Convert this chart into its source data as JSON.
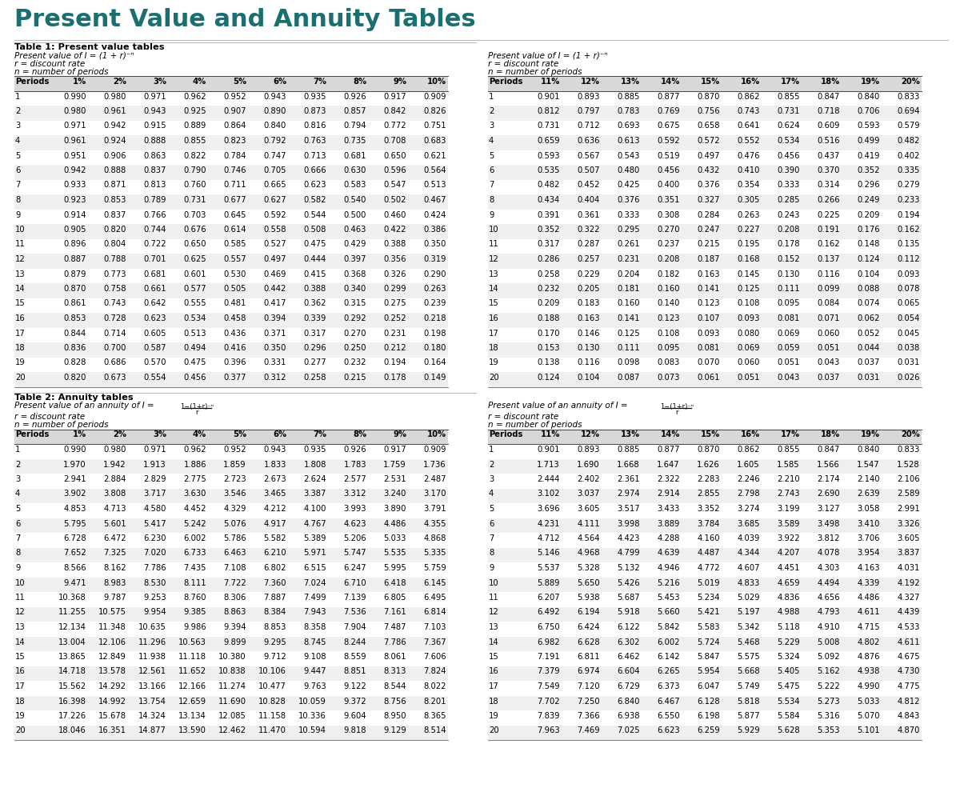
{
  "title": "Present Value and Annuity Tables",
  "title_color": "#1a7070",
  "title_fontsize": 22,
  "title_fontweight": "bold",
  "background_color": "#ffffff",
  "table1_title": "Table 1: Present value tables",
  "table1_left_headers": [
    "Periods",
    "1%",
    "2%",
    "3%",
    "4%",
    "5%",
    "6%",
    "7%",
    "8%",
    "9%",
    "10%"
  ],
  "table1_right_headers": [
    "Periods",
    "11%",
    "12%",
    "13%",
    "14%",
    "15%",
    "16%",
    "17%",
    "18%",
    "19%",
    "20%"
  ],
  "pv_left": [
    [
      1,
      0.99,
      0.98,
      0.971,
      0.962,
      0.952,
      0.943,
      0.935,
      0.926,
      0.917,
      0.909
    ],
    [
      2,
      0.98,
      0.961,
      0.943,
      0.925,
      0.907,
      0.89,
      0.873,
      0.857,
      0.842,
      0.826
    ],
    [
      3,
      0.971,
      0.942,
      0.915,
      0.889,
      0.864,
      0.84,
      0.816,
      0.794,
      0.772,
      0.751
    ],
    [
      4,
      0.961,
      0.924,
      0.888,
      0.855,
      0.823,
      0.792,
      0.763,
      0.735,
      0.708,
      0.683
    ],
    [
      5,
      0.951,
      0.906,
      0.863,
      0.822,
      0.784,
      0.747,
      0.713,
      0.681,
      0.65,
      0.621
    ],
    [
      6,
      0.942,
      0.888,
      0.837,
      0.79,
      0.746,
      0.705,
      0.666,
      0.63,
      0.596,
      0.564
    ],
    [
      7,
      0.933,
      0.871,
      0.813,
      0.76,
      0.711,
      0.665,
      0.623,
      0.583,
      0.547,
      0.513
    ],
    [
      8,
      0.923,
      0.853,
      0.789,
      0.731,
      0.677,
      0.627,
      0.582,
      0.54,
      0.502,
      0.467
    ],
    [
      9,
      0.914,
      0.837,
      0.766,
      0.703,
      0.645,
      0.592,
      0.544,
      0.5,
      0.46,
      0.424
    ],
    [
      10,
      0.905,
      0.82,
      0.744,
      0.676,
      0.614,
      0.558,
      0.508,
      0.463,
      0.422,
      0.386
    ],
    [
      11,
      0.896,
      0.804,
      0.722,
      0.65,
      0.585,
      0.527,
      0.475,
      0.429,
      0.388,
      0.35
    ],
    [
      12,
      0.887,
      0.788,
      0.701,
      0.625,
      0.557,
      0.497,
      0.444,
      0.397,
      0.356,
      0.319
    ],
    [
      13,
      0.879,
      0.773,
      0.681,
      0.601,
      0.53,
      0.469,
      0.415,
      0.368,
      0.326,
      0.29
    ],
    [
      14,
      0.87,
      0.758,
      0.661,
      0.577,
      0.505,
      0.442,
      0.388,
      0.34,
      0.299,
      0.263
    ],
    [
      15,
      0.861,
      0.743,
      0.642,
      0.555,
      0.481,
      0.417,
      0.362,
      0.315,
      0.275,
      0.239
    ],
    [
      16,
      0.853,
      0.728,
      0.623,
      0.534,
      0.458,
      0.394,
      0.339,
      0.292,
      0.252,
      0.218
    ],
    [
      17,
      0.844,
      0.714,
      0.605,
      0.513,
      0.436,
      0.371,
      0.317,
      0.27,
      0.231,
      0.198
    ],
    [
      18,
      0.836,
      0.7,
      0.587,
      0.494,
      0.416,
      0.35,
      0.296,
      0.25,
      0.212,
      0.18
    ],
    [
      19,
      0.828,
      0.686,
      0.57,
      0.475,
      0.396,
      0.331,
      0.277,
      0.232,
      0.194,
      0.164
    ],
    [
      20,
      0.82,
      0.673,
      0.554,
      0.456,
      0.377,
      0.312,
      0.258,
      0.215,
      0.178,
      0.149
    ]
  ],
  "pv_right": [
    [
      1,
      0.901,
      0.893,
      0.885,
      0.877,
      0.87,
      0.862,
      0.855,
      0.847,
      0.84,
      0.833
    ],
    [
      2,
      0.812,
      0.797,
      0.783,
      0.769,
      0.756,
      0.743,
      0.731,
      0.718,
      0.706,
      0.694
    ],
    [
      3,
      0.731,
      0.712,
      0.693,
      0.675,
      0.658,
      0.641,
      0.624,
      0.609,
      0.593,
      0.579
    ],
    [
      4,
      0.659,
      0.636,
      0.613,
      0.592,
      0.572,
      0.552,
      0.534,
      0.516,
      0.499,
      0.482
    ],
    [
      5,
      0.593,
      0.567,
      0.543,
      0.519,
      0.497,
      0.476,
      0.456,
      0.437,
      0.419,
      0.402
    ],
    [
      6,
      0.535,
      0.507,
      0.48,
      0.456,
      0.432,
      0.41,
      0.39,
      0.37,
      0.352,
      0.335
    ],
    [
      7,
      0.482,
      0.452,
      0.425,
      0.4,
      0.376,
      0.354,
      0.333,
      0.314,
      0.296,
      0.279
    ],
    [
      8,
      0.434,
      0.404,
      0.376,
      0.351,
      0.327,
      0.305,
      0.285,
      0.266,
      0.249,
      0.233
    ],
    [
      9,
      0.391,
      0.361,
      0.333,
      0.308,
      0.284,
      0.263,
      0.243,
      0.225,
      0.209,
      0.194
    ],
    [
      10,
      0.352,
      0.322,
      0.295,
      0.27,
      0.247,
      0.227,
      0.208,
      0.191,
      0.176,
      0.162
    ],
    [
      11,
      0.317,
      0.287,
      0.261,
      0.237,
      0.215,
      0.195,
      0.178,
      0.162,
      0.148,
      0.135
    ],
    [
      12,
      0.286,
      0.257,
      0.231,
      0.208,
      0.187,
      0.168,
      0.152,
      0.137,
      0.124,
      0.112
    ],
    [
      13,
      0.258,
      0.229,
      0.204,
      0.182,
      0.163,
      0.145,
      0.13,
      0.116,
      0.104,
      0.093
    ],
    [
      14,
      0.232,
      0.205,
      0.181,
      0.16,
      0.141,
      0.125,
      0.111,
      0.099,
      0.088,
      0.078
    ],
    [
      15,
      0.209,
      0.183,
      0.16,
      0.14,
      0.123,
      0.108,
      0.095,
      0.084,
      0.074,
      0.065
    ],
    [
      16,
      0.188,
      0.163,
      0.141,
      0.123,
      0.107,
      0.093,
      0.081,
      0.071,
      0.062,
      0.054
    ],
    [
      17,
      0.17,
      0.146,
      0.125,
      0.108,
      0.093,
      0.08,
      0.069,
      0.06,
      0.052,
      0.045
    ],
    [
      18,
      0.153,
      0.13,
      0.111,
      0.095,
      0.081,
      0.069,
      0.059,
      0.051,
      0.044,
      0.038
    ],
    [
      19,
      0.138,
      0.116,
      0.098,
      0.083,
      0.07,
      0.06,
      0.051,
      0.043,
      0.037,
      0.031
    ],
    [
      20,
      0.124,
      0.104,
      0.087,
      0.073,
      0.061,
      0.051,
      0.043,
      0.037,
      0.031,
      0.026
    ]
  ],
  "table2_title": "Table 2: Annuity tables",
  "table2_left_headers": [
    "Periods",
    "1%",
    "2%",
    "3%",
    "4%",
    "5%",
    "6%",
    "7%",
    "8%",
    "9%",
    "10%"
  ],
  "table2_right_headers": [
    "Periods",
    "11%",
    "12%",
    "13%",
    "14%",
    "15%",
    "16%",
    "17%",
    "18%",
    "19%",
    "20%"
  ],
  "ann_left": [
    [
      1,
      0.99,
      0.98,
      0.971,
      0.962,
      0.952,
      0.943,
      0.935,
      0.926,
      0.917,
      0.909
    ],
    [
      2,
      1.97,
      1.942,
      1.913,
      1.886,
      1.859,
      1.833,
      1.808,
      1.783,
      1.759,
      1.736
    ],
    [
      3,
      2.941,
      2.884,
      2.829,
      2.775,
      2.723,
      2.673,
      2.624,
      2.577,
      2.531,
      2.487
    ],
    [
      4,
      3.902,
      3.808,
      3.717,
      3.63,
      3.546,
      3.465,
      3.387,
      3.312,
      3.24,
      3.17
    ],
    [
      5,
      4.853,
      4.713,
      4.58,
      4.452,
      4.329,
      4.212,
      4.1,
      3.993,
      3.89,
      3.791
    ],
    [
      6,
      5.795,
      5.601,
      5.417,
      5.242,
      5.076,
      4.917,
      4.767,
      4.623,
      4.486,
      4.355
    ],
    [
      7,
      6.728,
      6.472,
      6.23,
      6.002,
      5.786,
      5.582,
      5.389,
      5.206,
      5.033,
      4.868
    ],
    [
      8,
      7.652,
      7.325,
      7.02,
      6.733,
      6.463,
      6.21,
      5.971,
      5.747,
      5.535,
      5.335
    ],
    [
      9,
      8.566,
      8.162,
      7.786,
      7.435,
      7.108,
      6.802,
      6.515,
      6.247,
      5.995,
      5.759
    ],
    [
      10,
      9.471,
      8.983,
      8.53,
      8.111,
      7.722,
      7.36,
      7.024,
      6.71,
      6.418,
      6.145
    ],
    [
      11,
      10.368,
      9.787,
      9.253,
      8.76,
      8.306,
      7.887,
      7.499,
      7.139,
      6.805,
      6.495
    ],
    [
      12,
      11.255,
      10.575,
      9.954,
      9.385,
      8.863,
      8.384,
      7.943,
      7.536,
      7.161,
      6.814
    ],
    [
      13,
      12.134,
      11.348,
      10.635,
      9.986,
      9.394,
      8.853,
      8.358,
      7.904,
      7.487,
      7.103
    ],
    [
      14,
      13.004,
      12.106,
      11.296,
      10.563,
      9.899,
      9.295,
      8.745,
      8.244,
      7.786,
      7.367
    ],
    [
      15,
      13.865,
      12.849,
      11.938,
      11.118,
      10.38,
      9.712,
      9.108,
      8.559,
      8.061,
      7.606
    ],
    [
      16,
      14.718,
      13.578,
      12.561,
      11.652,
      10.838,
      10.106,
      9.447,
      8.851,
      8.313,
      7.824
    ],
    [
      17,
      15.562,
      14.292,
      13.166,
      12.166,
      11.274,
      10.477,
      9.763,
      9.122,
      8.544,
      8.022
    ],
    [
      18,
      16.398,
      14.992,
      13.754,
      12.659,
      11.69,
      10.828,
      10.059,
      9.372,
      8.756,
      8.201
    ],
    [
      19,
      17.226,
      15.678,
      14.324,
      13.134,
      12.085,
      11.158,
      10.336,
      9.604,
      8.95,
      8.365
    ],
    [
      20,
      18.046,
      16.351,
      14.877,
      13.59,
      12.462,
      11.47,
      10.594,
      9.818,
      9.129,
      8.514
    ]
  ],
  "ann_right": [
    [
      1,
      0.901,
      0.893,
      0.885,
      0.877,
      0.87,
      0.862,
      0.855,
      0.847,
      0.84,
      0.833
    ],
    [
      2,
      1.713,
      1.69,
      1.668,
      1.647,
      1.626,
      1.605,
      1.585,
      1.566,
      1.547,
      1.528
    ],
    [
      3,
      2.444,
      2.402,
      2.361,
      2.322,
      2.283,
      2.246,
      2.21,
      2.174,
      2.14,
      2.106
    ],
    [
      4,
      3.102,
      3.037,
      2.974,
      2.914,
      2.855,
      2.798,
      2.743,
      2.69,
      2.639,
      2.589
    ],
    [
      5,
      3.696,
      3.605,
      3.517,
      3.433,
      3.352,
      3.274,
      3.199,
      3.127,
      3.058,
      2.991
    ],
    [
      6,
      4.231,
      4.111,
      3.998,
      3.889,
      3.784,
      3.685,
      3.589,
      3.498,
      3.41,
      3.326
    ],
    [
      7,
      4.712,
      4.564,
      4.423,
      4.288,
      4.16,
      4.039,
      3.922,
      3.812,
      3.706,
      3.605
    ],
    [
      8,
      5.146,
      4.968,
      4.799,
      4.639,
      4.487,
      4.344,
      4.207,
      4.078,
      3.954,
      3.837
    ],
    [
      9,
      5.537,
      5.328,
      5.132,
      4.946,
      4.772,
      4.607,
      4.451,
      4.303,
      4.163,
      4.031
    ],
    [
      10,
      5.889,
      5.65,
      5.426,
      5.216,
      5.019,
      4.833,
      4.659,
      4.494,
      4.339,
      4.192
    ],
    [
      11,
      6.207,
      5.938,
      5.687,
      5.453,
      5.234,
      5.029,
      4.836,
      4.656,
      4.486,
      4.327
    ],
    [
      12,
      6.492,
      6.194,
      5.918,
      5.66,
      5.421,
      5.197,
      4.988,
      4.793,
      4.611,
      4.439
    ],
    [
      13,
      6.75,
      6.424,
      6.122,
      5.842,
      5.583,
      5.342,
      5.118,
      4.91,
      4.715,
      4.533
    ],
    [
      14,
      6.982,
      6.628,
      6.302,
      6.002,
      5.724,
      5.468,
      5.229,
      5.008,
      4.802,
      4.611
    ],
    [
      15,
      7.191,
      6.811,
      6.462,
      6.142,
      5.847,
      5.575,
      5.324,
      5.092,
      4.876,
      4.675
    ],
    [
      16,
      7.379,
      6.974,
      6.604,
      6.265,
      5.954,
      5.668,
      5.405,
      5.162,
      4.938,
      4.73
    ],
    [
      17,
      7.549,
      7.12,
      6.729,
      6.373,
      6.047,
      5.749,
      5.475,
      5.222,
      4.99,
      4.775
    ],
    [
      18,
      7.702,
      7.25,
      6.84,
      6.467,
      6.128,
      5.818,
      5.534,
      5.273,
      5.033,
      4.812
    ],
    [
      19,
      7.839,
      7.366,
      6.938,
      6.55,
      6.198,
      5.877,
      5.584,
      5.316,
      5.07,
      4.843
    ],
    [
      20,
      7.963,
      7.469,
      7.025,
      6.623,
      6.259,
      5.929,
      5.628,
      5.353,
      5.101,
      4.87
    ]
  ]
}
